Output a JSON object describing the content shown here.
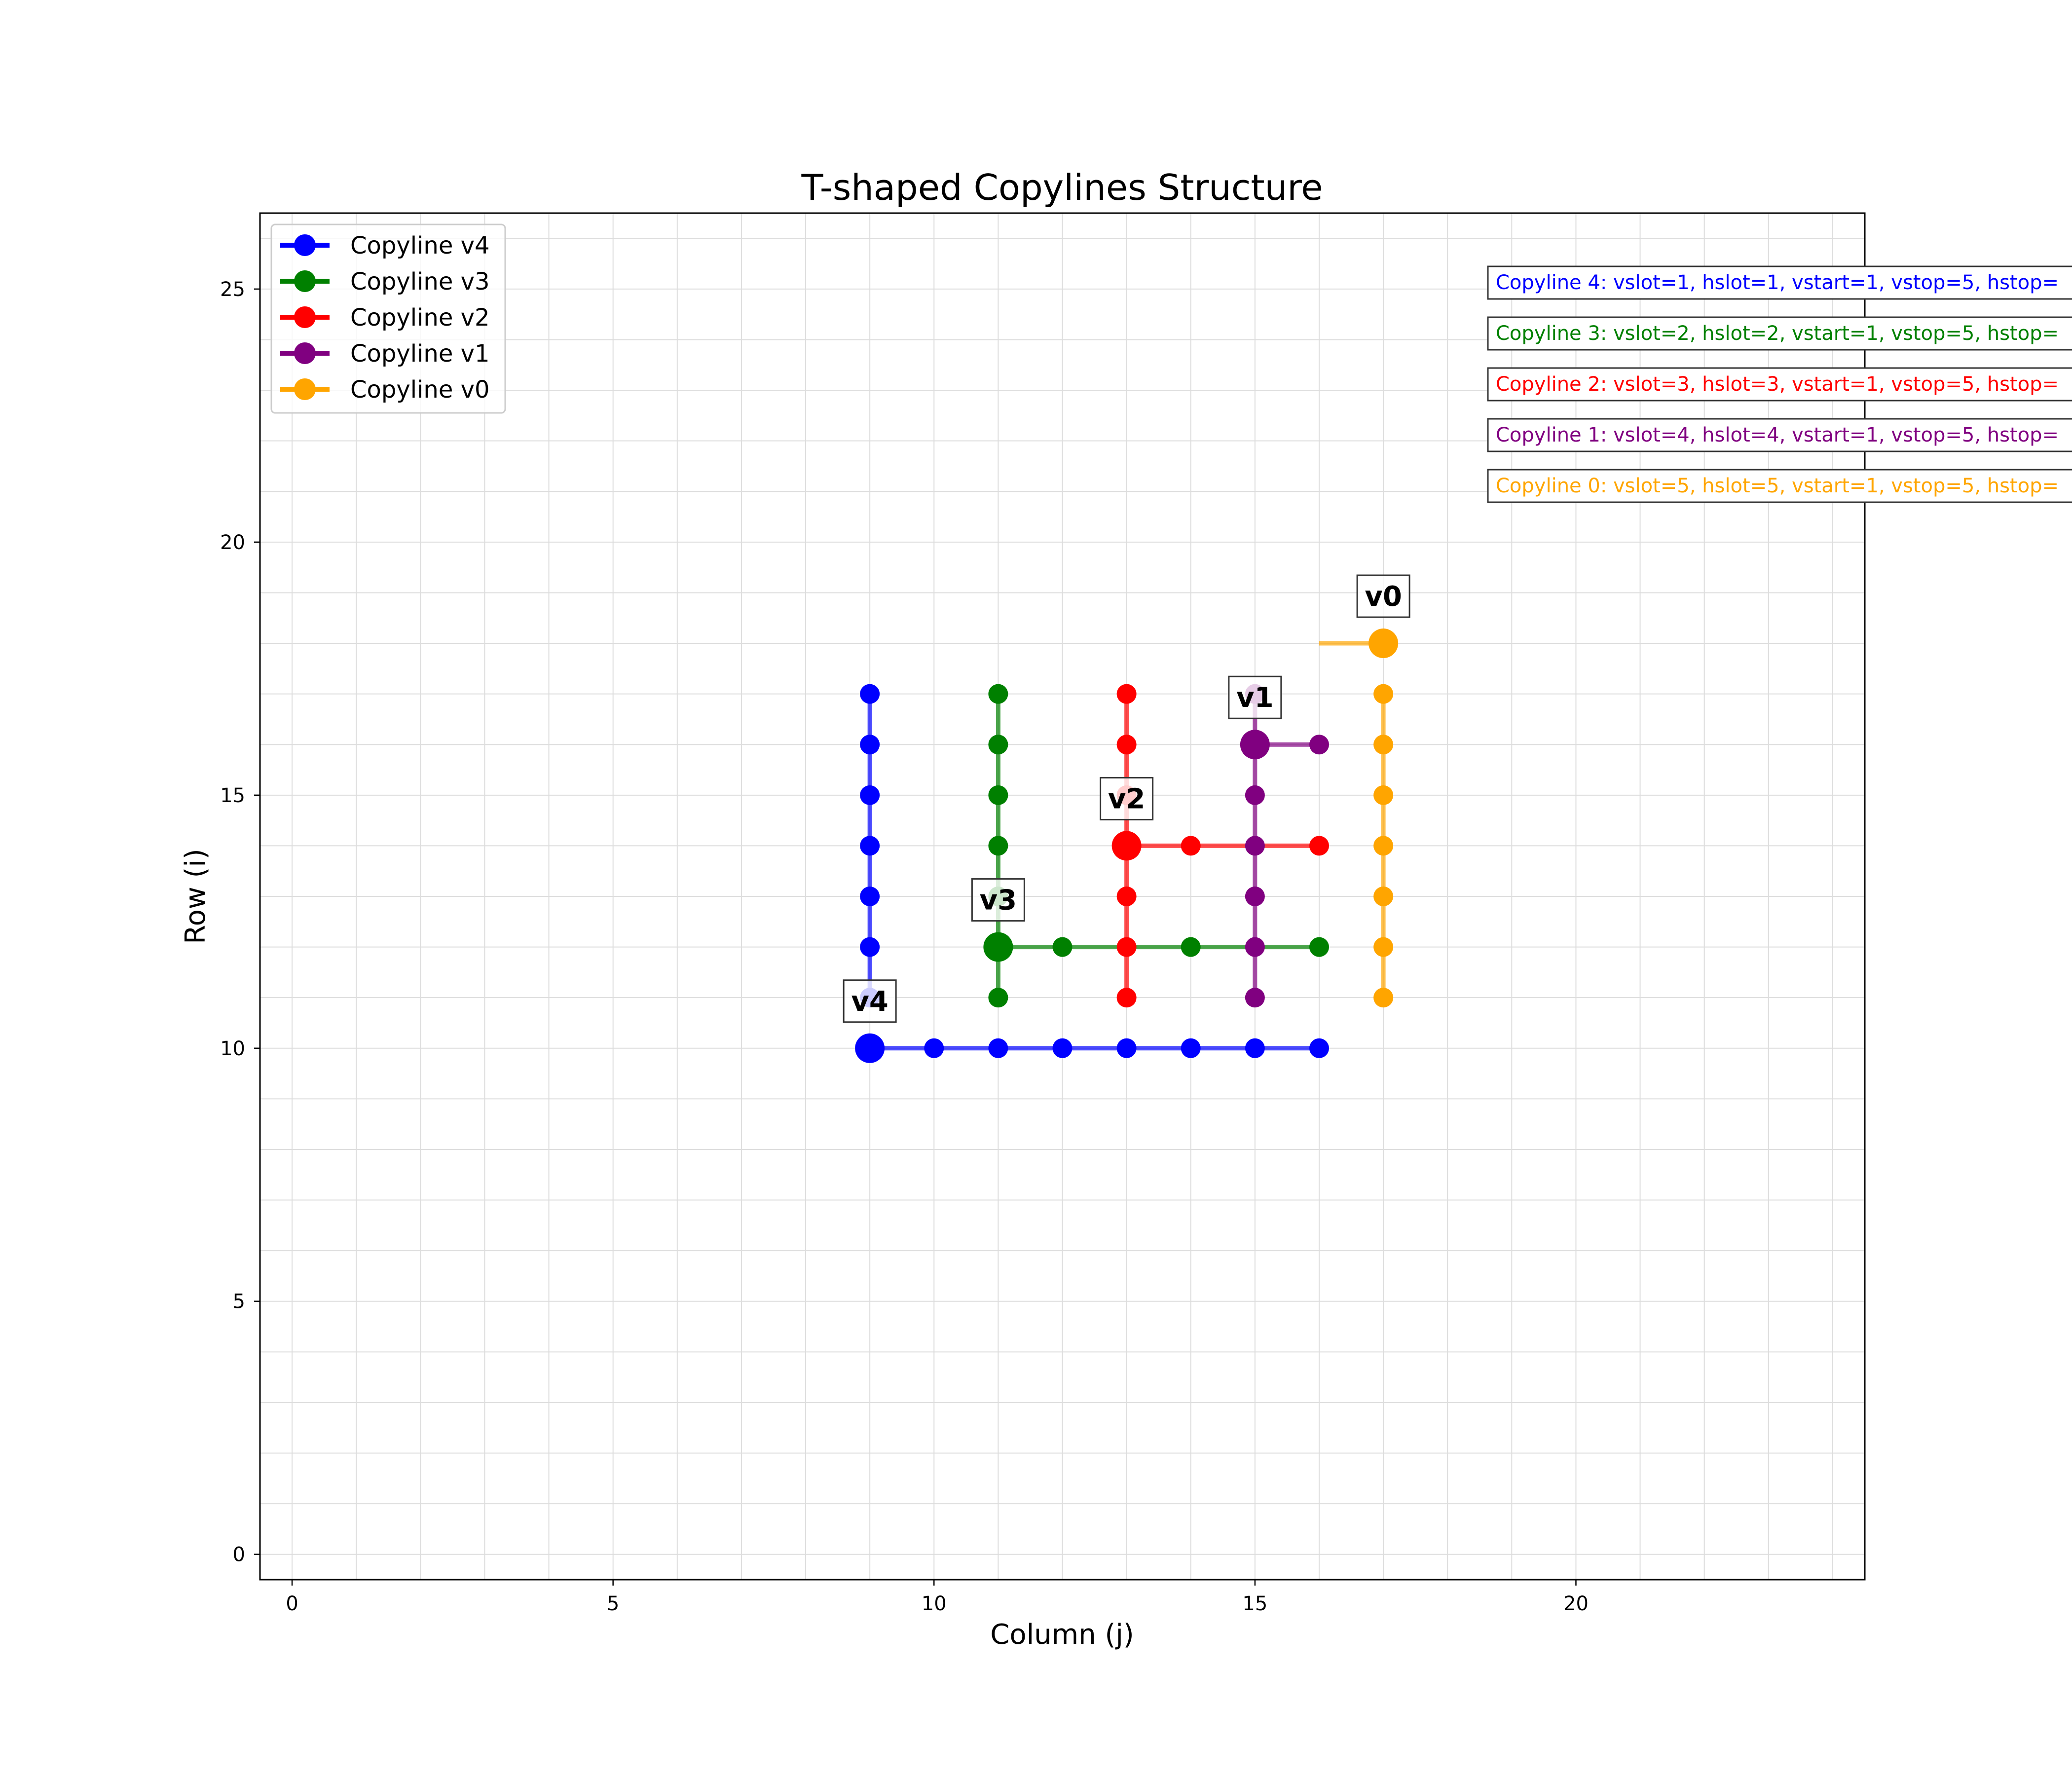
{
  "chart_data": {
    "type": "line",
    "title": "T-shaped Copylines Structure",
    "xlabel": "Column (j)",
    "ylabel": "Row (i)",
    "xlim": [
      -0.5,
      24.5
    ],
    "ylim": [
      26.5,
      -0.5
    ],
    "xticks": [
      0,
      5,
      10,
      15,
      20
    ],
    "yticks": [
      0,
      5,
      10,
      15,
      20,
      25
    ],
    "grid": true,
    "legend_position": "top-left",
    "series": [
      {
        "name": "Copyline v4",
        "label": "v4",
        "color": "#0000ff",
        "corner": [
          9,
          10
        ],
        "vertical": [
          [
            9,
            11
          ],
          [
            9,
            12
          ],
          [
            9,
            13
          ],
          [
            9,
            14
          ],
          [
            9,
            15
          ],
          [
            9,
            16
          ],
          [
            9,
            17
          ]
        ],
        "horizontal": [
          [
            10,
            10
          ],
          [
            11,
            10
          ],
          [
            12,
            10
          ],
          [
            13,
            10
          ],
          [
            14,
            10
          ],
          [
            15,
            10
          ],
          [
            16,
            10
          ]
        ],
        "annotation": "Copyline 4: vslot=1, hslot=1, vstart=1, vstop=5, hstop="
      },
      {
        "name": "Copyline v3",
        "label": "v3",
        "color": "#008000",
        "corner": [
          11,
          12
        ],
        "vertical": [
          [
            11,
            11
          ],
          [
            11,
            13
          ],
          [
            11,
            14
          ],
          [
            11,
            15
          ],
          [
            11,
            16
          ],
          [
            11,
            17
          ]
        ],
        "horizontal": [
          [
            12,
            12
          ],
          [
            14,
            12
          ],
          [
            16,
            12
          ]
        ],
        "annotation": "Copyline 3: vslot=2, hslot=2, vstart=1, vstop=5, hstop="
      },
      {
        "name": "Copyline v2",
        "label": "v2",
        "color": "#ff0000",
        "corner": [
          13,
          14
        ],
        "vertical": [
          [
            13,
            11
          ],
          [
            13,
            12
          ],
          [
            13,
            13
          ],
          [
            13,
            15
          ],
          [
            13,
            16
          ],
          [
            13,
            17
          ]
        ],
        "horizontal": [
          [
            14,
            14
          ],
          [
            16,
            14
          ]
        ],
        "annotation": "Copyline 2: vslot=3, hslot=3, vstart=1, vstop=5, hstop="
      },
      {
        "name": "Copyline v1",
        "label": "v1",
        "color": "#800080",
        "corner": [
          15,
          16
        ],
        "vertical": [
          [
            15,
            11
          ],
          [
            15,
            12
          ],
          [
            15,
            13
          ],
          [
            15,
            14
          ],
          [
            15,
            15
          ],
          [
            15,
            17
          ]
        ],
        "horizontal": [
          [
            16,
            16
          ]
        ],
        "annotation": "Copyline 1: vslot=4, hslot=4, vstart=1, vstop=5, hstop="
      },
      {
        "name": "Copyline v0",
        "label": "v0",
        "color": "#ffa500",
        "corner": [
          17,
          18
        ],
        "vertical": [
          [
            17,
            11
          ],
          [
            17,
            12
          ],
          [
            17,
            13
          ],
          [
            17,
            14
          ],
          [
            17,
            15
          ],
          [
            17,
            16
          ],
          [
            17,
            17
          ]
        ],
        "horizontal": [],
        "hline_to": 16,
        "annotation": "Copyline 0: vslot=5, hslot=5, vstart=1, vstop=5, hstop="
      }
    ]
  }
}
